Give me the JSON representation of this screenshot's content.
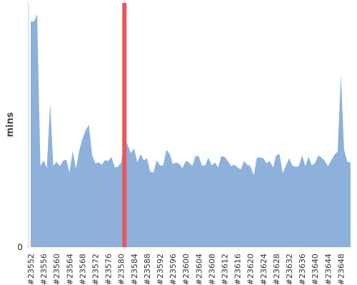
{
  "chart_data": {
    "type": "area",
    "y_label": "mins",
    "color": "#8eb1db",
    "categories": [
      "#23552",
      null,
      null,
      null,
      "#23556",
      null,
      null,
      null,
      "#23560",
      null,
      null,
      null,
      "#23564",
      null,
      null,
      null,
      "#23568",
      null,
      null,
      null,
      "#23572",
      null,
      null,
      null,
      "#23576",
      null,
      null,
      null,
      "#23580",
      null,
      null,
      null,
      "#23584",
      null,
      null,
      null,
      "#23588",
      null,
      null,
      null,
      "#23592",
      null,
      null,
      null,
      "#23596",
      null,
      null,
      null,
      "#23600",
      null,
      null,
      null,
      "#23604",
      null,
      null,
      null,
      "#23608",
      null,
      null,
      null,
      "#23612",
      null,
      null,
      null,
      "#23616",
      null,
      null,
      null,
      "#23620",
      null,
      null,
      null,
      "#23624",
      null,
      null,
      null,
      "#23628",
      null,
      null,
      null,
      "#23632",
      null,
      null,
      null,
      "#23636",
      null,
      null,
      null,
      "#23640",
      null,
      null,
      null,
      "#23644",
      null,
      null,
      null,
      "#23648",
      null,
      null,
      null
    ],
    "values": [
      92.4,
      92.4,
      95.3,
      33.2,
      35.6,
      32.4,
      58.9,
      33.2,
      35,
      33.2,
      35.3,
      35.9,
      30.6,
      39.4,
      32.1,
      39.4,
      44.3,
      47.8,
      50.1,
      37.6,
      34.4,
      34.7,
      33.8,
      35.6,
      35.3,
      37,
      32.7,
      32.9,
      34.7,
      44.3,
      42,
      38.5,
      40.5,
      34.7,
      38.2,
      35.6,
      36.4,
      30.9,
      30.6,
      35.6,
      33.5,
      33.5,
      39.9,
      38.2,
      34.1,
      34.7,
      34.1,
      32.4,
      35.3,
      34.7,
      33.2,
      37.3,
      37.3,
      33.5,
      33.5,
      36.7,
      33.5,
      34.7,
      32.7,
      37.3,
      37,
      35.3,
      33.2,
      33.8,
      32.7,
      31.8,
      35.3,
      33.8,
      33.2,
      29.4,
      36.7,
      36.7,
      36.4,
      34.4,
      35.3,
      32.7,
      37.6,
      38.2,
      30.3,
      33.5,
      36.4,
      33.5,
      32.9,
      33.2,
      37.6,
      33.2,
      37,
      33.5,
      34.4,
      37.6,
      36.7,
      35.3,
      33.2,
      35.6,
      37.9,
      39.1,
      70.6,
      39.9,
      35,
      34.7
    ],
    "ylim": [
      0,
      100
    ],
    "yticks": [
      0
    ],
    "highlight": {
      "index": 29,
      "color": "#e8575c"
    }
  }
}
